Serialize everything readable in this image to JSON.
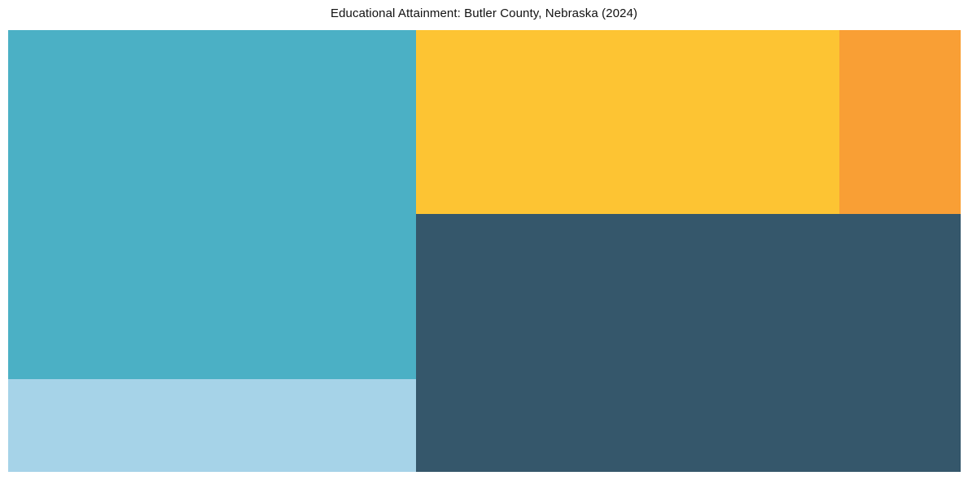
{
  "page": {
    "background": "#ffffff"
  },
  "chart_data": {
    "type": "treemap",
    "title": "Educational Attainment: Butler County, Nebraska (2024)",
    "legend_position": "none",
    "text_labels_visible": false,
    "grid": false,
    "segments": [
      {
        "id": "teal-large",
        "color": "#4bb0c5",
        "approx_area_share_pct": 33.8,
        "position": "left-top"
      },
      {
        "id": "light-blue",
        "color": "#a6d3e8",
        "approx_area_share_pct": 9.0,
        "position": "left-bottom"
      },
      {
        "id": "yellow",
        "color": "#fdc433",
        "approx_area_share_pct": 18.5,
        "position": "right-top-left"
      },
      {
        "id": "orange",
        "color": "#f99f35",
        "approx_area_share_pct": 5.3,
        "position": "right-top-right"
      },
      {
        "id": "dark-slate",
        "color": "#35576b",
        "approx_area_share_pct": 33.4,
        "position": "right-bottom"
      }
    ]
  }
}
